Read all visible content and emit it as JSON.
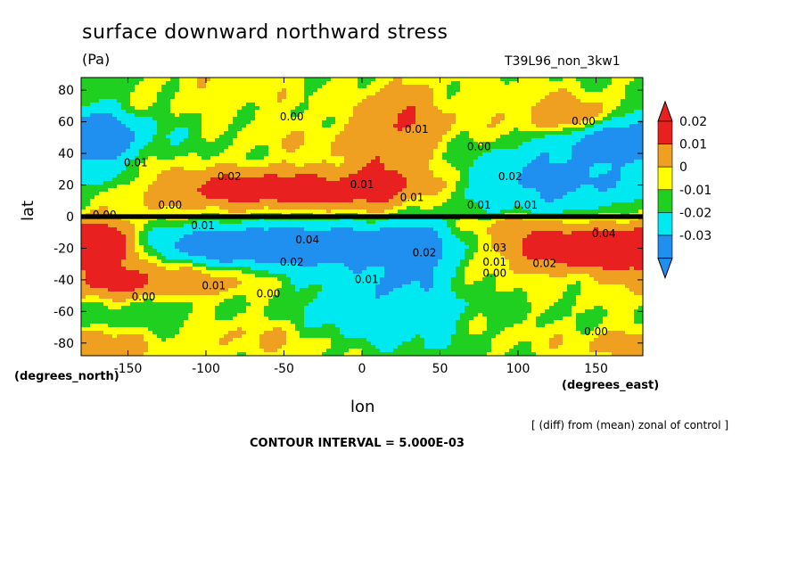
{
  "chart_data": {
    "type": "heatmap",
    "title": "surface downward northward stress",
    "units": "(Pa)",
    "run_label": "T39L96_non_3kw1",
    "xlabel": "lon",
    "ylabel": "lat",
    "x_unit_label": "(degrees_east)",
    "y_unit_label": "(degrees_north)",
    "xlim": [
      -180,
      180
    ],
    "ylim": [
      -88,
      88
    ],
    "x_ticks": [
      -150,
      -100,
      -50,
      0,
      50,
      100,
      150
    ],
    "y_ticks": [
      80,
      60,
      40,
      20,
      0,
      -20,
      -40,
      -60,
      -80
    ],
    "note": "[ (diff) from (mean) zonal of control ]",
    "contour_interval_text": "CONTOUR INTERVAL = 5.000E-03",
    "contour_interval": 0.005,
    "colorbar": {
      "labels": [
        "0.02",
        "0.01",
        "0",
        "-0.01",
        "-0.02",
        "-0.03"
      ],
      "bands": [
        {
          "range": [
            0.015,
            0.03
          ],
          "color": "#e82020"
        },
        {
          "range": [
            0.005,
            0.015
          ],
          "color": "#f0a020"
        },
        {
          "range": [
            0.0,
            0.005
          ],
          "color": "#ffff00"
        },
        {
          "range": [
            -0.005,
            0.0
          ],
          "color": "#20d020"
        },
        {
          "range": [
            -0.015,
            -0.005
          ],
          "color": "#00e8f0"
        },
        {
          "range": [
            -0.03,
            -0.015
          ],
          "color": "#2090f0"
        }
      ]
    },
    "contour_labels": [
      {
        "lon": -45,
        "lat": 61,
        "text": "0.00"
      },
      {
        "lon": 35,
        "lat": 53,
        "text": "0.01"
      },
      {
        "lon": 75,
        "lat": 42,
        "text": "0.00"
      },
      {
        "lon": 142,
        "lat": 58,
        "text": "0.00"
      },
      {
        "lon": -145,
        "lat": 32,
        "text": "0.01"
      },
      {
        "lon": -85,
        "lat": 23,
        "text": "0.02"
      },
      {
        "lon": 0,
        "lat": 18,
        "text": "0.01"
      },
      {
        "lon": 32,
        "lat": 10,
        "text": "0.01"
      },
      {
        "lon": 95,
        "lat": 23,
        "text": "0.02"
      },
      {
        "lon": -165,
        "lat": -1,
        "text": "0.00"
      },
      {
        "lon": -123,
        "lat": 5,
        "text": "0.00"
      },
      {
        "lon": 75,
        "lat": 5,
        "text": "0.01"
      },
      {
        "lon": 105,
        "lat": 5,
        "text": "0.01"
      },
      {
        "lon": -102,
        "lat": -8,
        "text": "0.01"
      },
      {
        "lon": -35,
        "lat": -17,
        "text": "0.04"
      },
      {
        "lon": 40,
        "lat": -25,
        "text": "0.02"
      },
      {
        "lon": -45,
        "lat": -31,
        "text": "0.02"
      },
      {
        "lon": -95,
        "lat": -46,
        "text": "0.01"
      },
      {
        "lon": -60,
        "lat": -51,
        "text": "0.00"
      },
      {
        "lon": 3,
        "lat": -42,
        "text": "0.01"
      },
      {
        "lon": -140,
        "lat": -53,
        "text": "0.00"
      },
      {
        "lon": 85,
        "lat": -22,
        "text": "0.03"
      },
      {
        "lon": 85,
        "lat": -31,
        "text": "0.01"
      },
      {
        "lon": 85,
        "lat": -38,
        "text": "0.00"
      },
      {
        "lon": 117,
        "lat": -32,
        "text": "0.02"
      },
      {
        "lon": 155,
        "lat": -13,
        "text": "0.04"
      },
      {
        "lon": 150,
        "lat": -75,
        "text": "0.00"
      }
    ]
  }
}
